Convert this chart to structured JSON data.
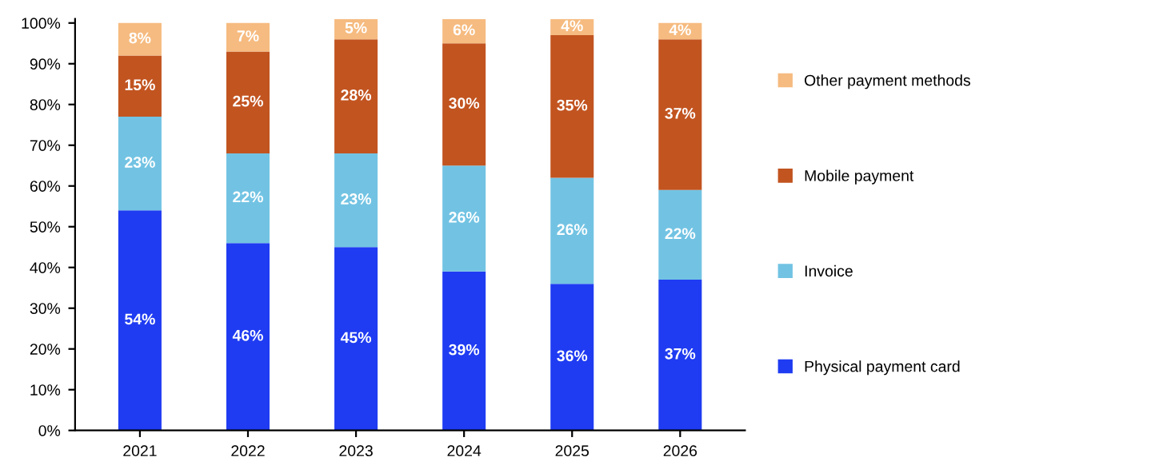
{
  "chart_data": {
    "type": "bar",
    "stacked": true,
    "categories": [
      "2021",
      "2022",
      "2023",
      "2024",
      "2025",
      "2026"
    ],
    "series": [
      {
        "name": "Physical payment card",
        "color": "#1f3cf2",
        "values": [
          54,
          46,
          45,
          39,
          36,
          37
        ],
        "value_labels": [
          "54%",
          "46%",
          "45%",
          "39%",
          "36%",
          "37%"
        ]
      },
      {
        "name": "Invoice",
        "color": "#72c3e3",
        "values": [
          23,
          22,
          23,
          26,
          26,
          22
        ],
        "value_labels": [
          "23%",
          "22%",
          "23%",
          "26%",
          "26%",
          "22%"
        ]
      },
      {
        "name": "Mobile payment",
        "color": "#c25420",
        "values": [
          15,
          25,
          28,
          30,
          35,
          37
        ],
        "value_labels": [
          "15%",
          "25%",
          "28%",
          "30%",
          "35%",
          "37%"
        ]
      },
      {
        "name": "Other payment methods",
        "color": "#f6bb80",
        "values": [
          8,
          7,
          5,
          6,
          4,
          4
        ],
        "value_labels": [
          "8%",
          "7%",
          "5%",
          "6%",
          "4%",
          "4%"
        ]
      }
    ],
    "ylim": [
      0,
      101
    ],
    "yticks": [
      {
        "value": 0,
        "label": "0%"
      },
      {
        "value": 10,
        "label": "10%"
      },
      {
        "value": 20,
        "label": "20%"
      },
      {
        "value": 30,
        "label": "30%"
      },
      {
        "value": 40,
        "label": "40%"
      },
      {
        "value": 50,
        "label": "50%"
      },
      {
        "value": 60,
        "label": "60%"
      },
      {
        "value": 70,
        "label": "70%"
      },
      {
        "value": 80,
        "label": "80%"
      },
      {
        "value": 90,
        "label": "90%"
      },
      {
        "value": 100,
        "label": "100%"
      }
    ],
    "legend": "right",
    "grid": false
  }
}
